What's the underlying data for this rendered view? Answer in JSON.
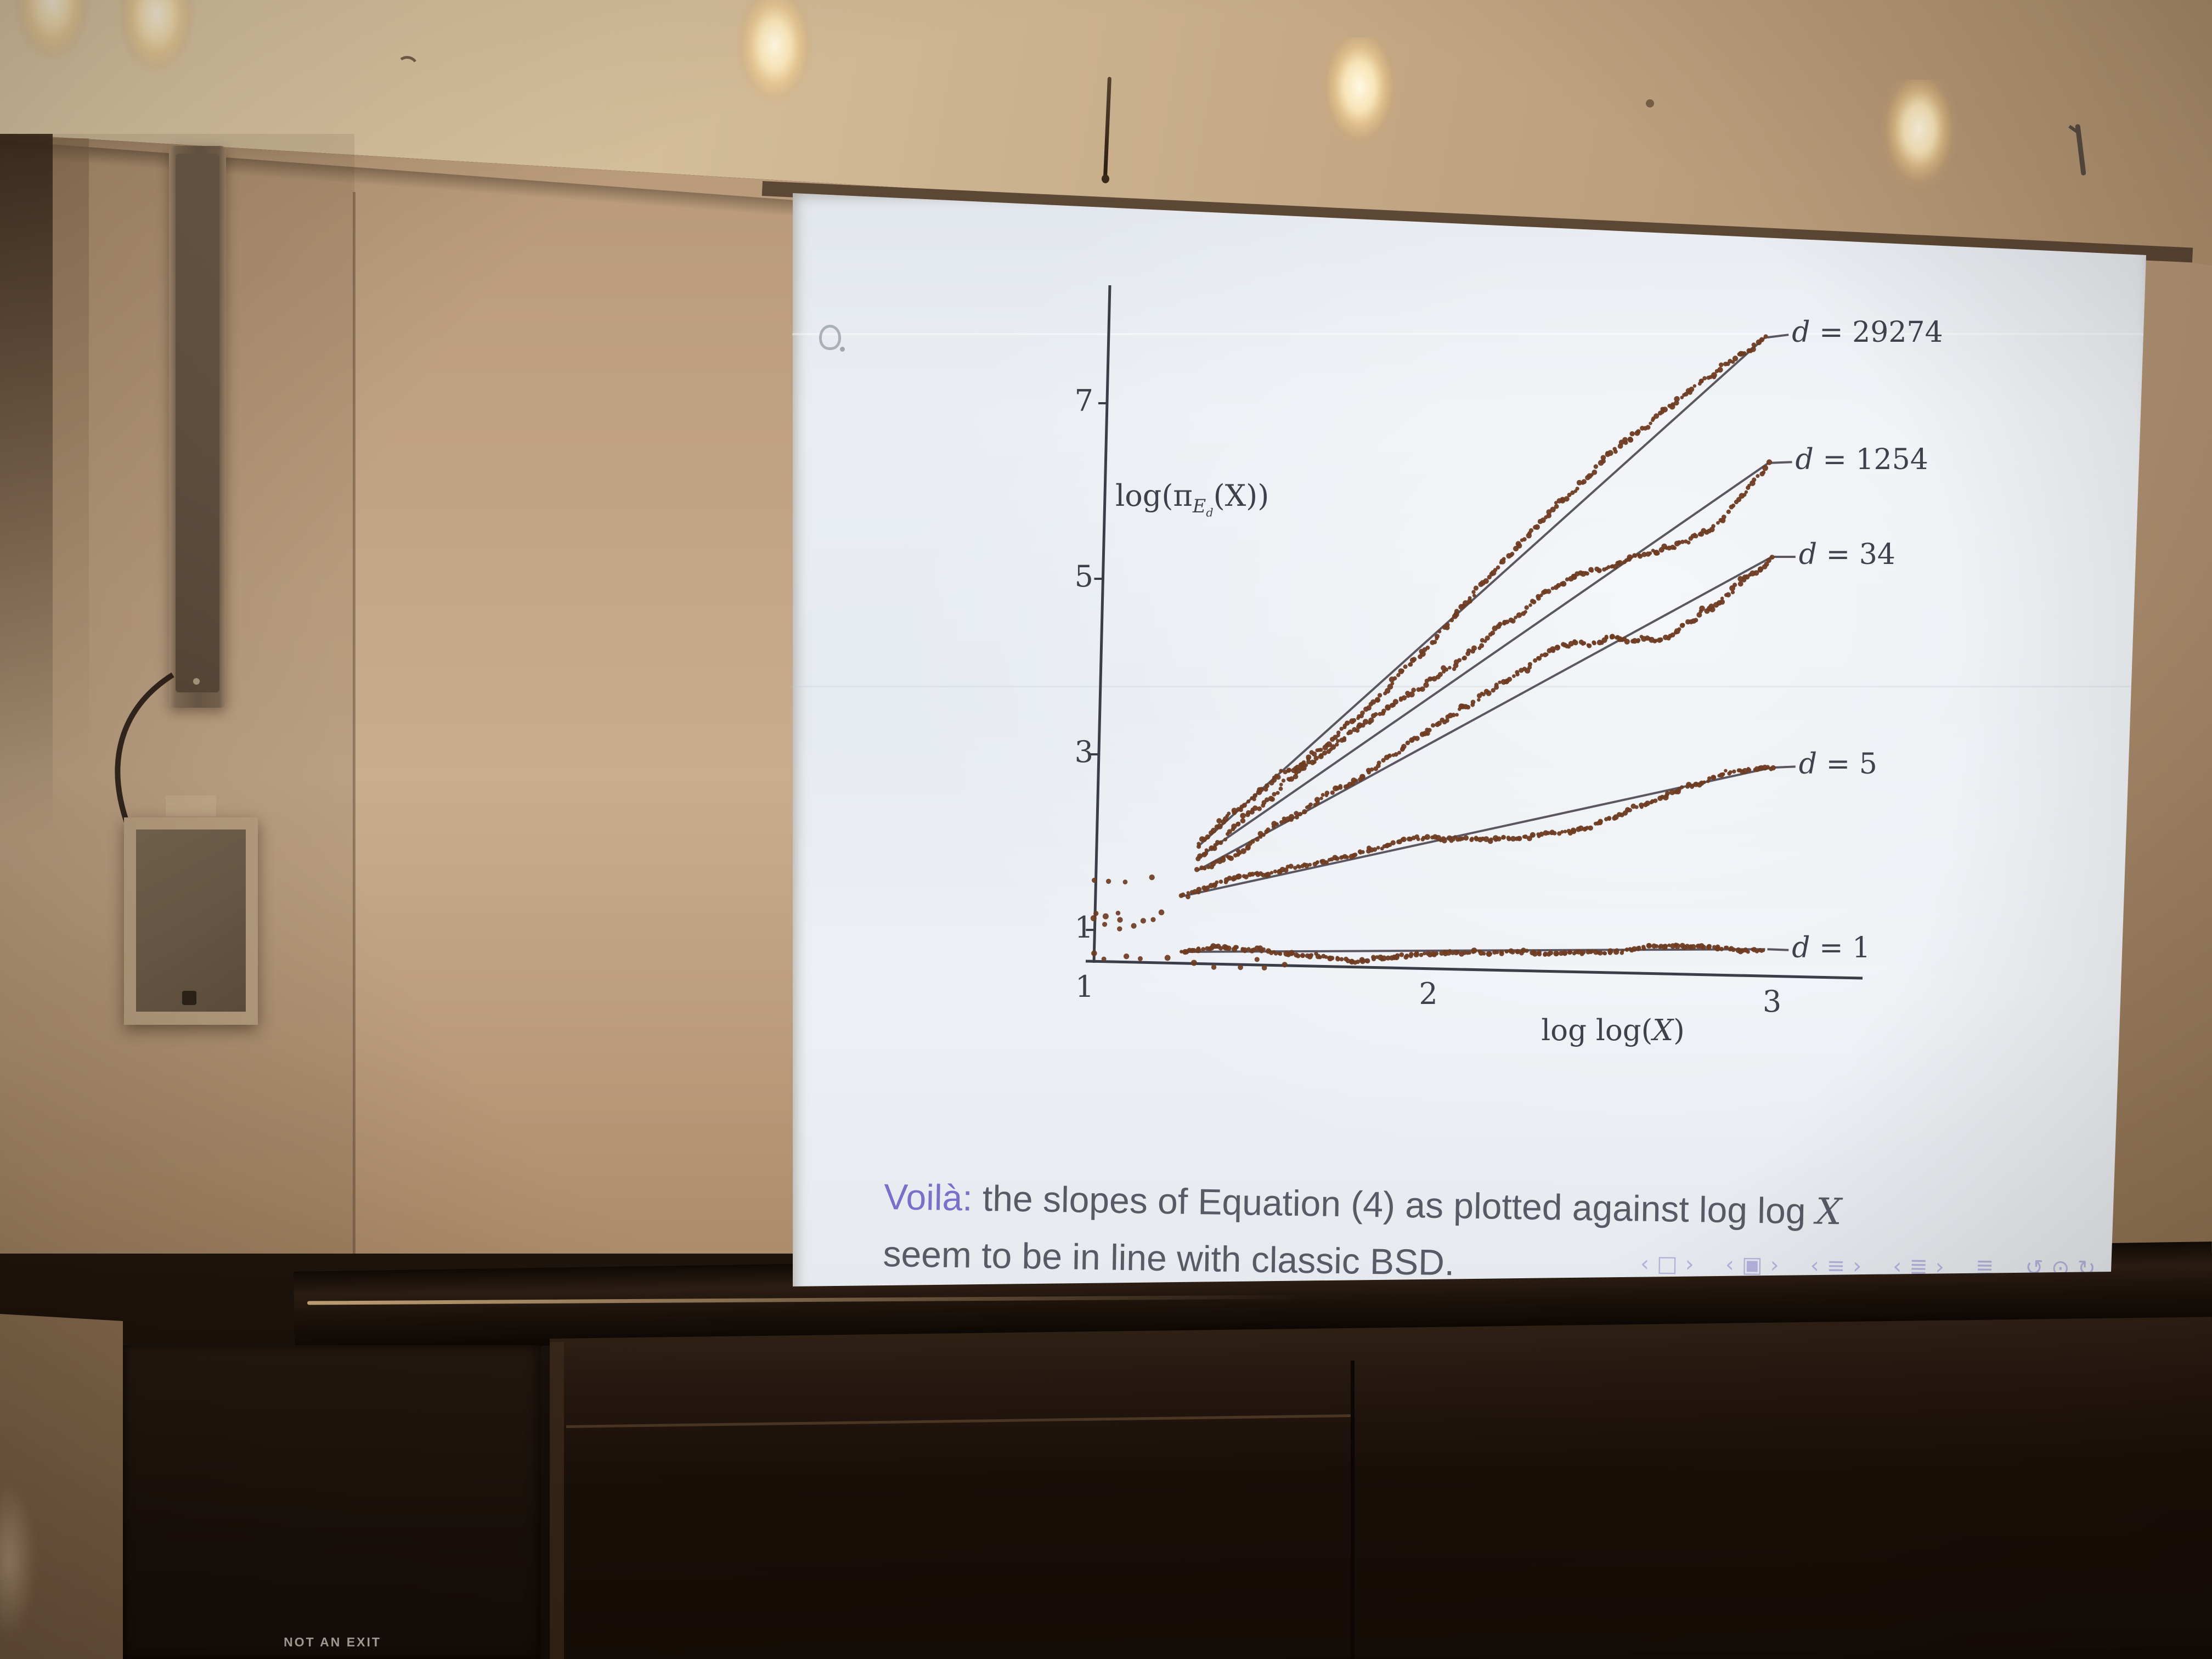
{
  "scene": {
    "sign": {
      "text": "NOT AN EXIT"
    }
  },
  "slide": {
    "stamp_icon": "hand-stamp",
    "caption": {
      "lead": "Voilà:",
      "line1_rest": " the slopes of Equation (4) as plotted against ",
      "line1_math": "log log ",
      "line1_var": "X",
      "line2": "seem to be in line with classic BSD.",
      "lead_color": "#7a70c9",
      "body_color": "#565b66"
    },
    "nav_groups": [
      [
        {
          "name": "nav-back-icon",
          "glyph": "‹"
        },
        {
          "name": "nav-slide-icon",
          "glyph": "□"
        },
        {
          "name": "nav-forward-icon",
          "glyph": "›"
        }
      ],
      [
        {
          "name": "nav-back-icon",
          "glyph": "‹"
        },
        {
          "name": "nav-frame-icon",
          "glyph": "▣"
        },
        {
          "name": "nav-forward-icon",
          "glyph": "›"
        }
      ],
      [
        {
          "name": "nav-back-icon",
          "glyph": "‹"
        },
        {
          "name": "nav-subsection-icon",
          "glyph": "≡"
        },
        {
          "name": "nav-forward-icon",
          "glyph": "›"
        }
      ],
      [
        {
          "name": "nav-back-icon",
          "glyph": "‹"
        },
        {
          "name": "nav-section-icon",
          "glyph": "≣"
        },
        {
          "name": "nav-forward-icon",
          "glyph": "›"
        }
      ],
      [
        {
          "name": "nav-appendix-icon",
          "glyph": "≣"
        }
      ],
      [
        {
          "name": "nav-return-icon",
          "glyph": "↺"
        },
        {
          "name": "nav-search-icon",
          "glyph": "⊙"
        },
        {
          "name": "nav-redo-icon",
          "glyph": "↻"
        }
      ]
    ]
  },
  "chart_data": {
    "type": "scatter",
    "title": "",
    "xlabel_parts": {
      "pre": "log log(",
      "var": "X",
      "post": ")"
    },
    "ylabel_parts": {
      "pre": "log(π",
      "sub": "E",
      "subsub": "d",
      "post": "(X))"
    },
    "x_ticks": [
      "1",
      "2",
      "3"
    ],
    "y_ticks": [
      "7",
      "5",
      "3",
      "1"
    ],
    "xlim": [
      1,
      3.3
    ],
    "ylim": [
      0.4,
      8.4
    ],
    "grid": false,
    "legend": "inline-right-labels",
    "dot_color": "#6e3c22",
    "fit_line_color": "#4b4650",
    "axis_color": "#3a3e48",
    "series": [
      {
        "label": "d = 29274",
        "d": 29274,
        "fit_line": {
          "x1": 1.33,
          "y1": 1.95,
          "x2": 2.98,
          "y2": 7.75
        },
        "label_anchor": {
          "x": 3.01,
          "y": 7.78
        },
        "scatter": {
          "n": 230,
          "seed": 11,
          "walk_amp": 0.16,
          "wobble": [
            {
              "a": 0.07,
              "f": 9.5,
              "p": 1.2
            },
            {
              "a": 0.12,
              "f": 4.2,
              "p": 4.0
            }
          ]
        }
      },
      {
        "label": "d = 1254",
        "d": 1254,
        "fit_line": {
          "x1": 1.33,
          "y1": 1.82,
          "x2": 2.99,
          "y2": 6.32
        },
        "label_anchor": {
          "x": 3.02,
          "y": 6.33
        },
        "scatter": {
          "n": 225,
          "seed": 22,
          "walk_amp": 0.15,
          "wobble": [
            {
              "a": 0.2,
              "f": 5.5,
              "p": -0.5
            },
            {
              "a": 0.1,
              "f": 11.0,
              "p": 0.5
            }
          ]
        }
      },
      {
        "label": "d = 34",
        "d": 34,
        "fit_line": {
          "x1": 1.33,
          "y1": 1.68,
          "x2": 3.0,
          "y2": 5.25
        },
        "label_anchor": {
          "x": 3.03,
          "y": 5.25
        },
        "scatter": {
          "n": 225,
          "seed": 33,
          "walk_amp": 0.15,
          "wobble": [
            {
              "a": 0.18,
              "f": 6.0,
              "p": -1.2
            },
            {
              "a": 0.09,
              "f": 12.0,
              "p": 1.0
            }
          ]
        }
      },
      {
        "label": "d = 5",
        "d": 5,
        "fit_line": {
          "x1": 1.28,
          "y1": 1.38,
          "x2": 3.0,
          "y2": 2.85
        },
        "label_anchor": {
          "x": 3.03,
          "y": 2.86
        },
        "scatter": {
          "n": 220,
          "seed": 44,
          "walk_amp": 0.11,
          "wobble": [
            {
              "a": 0.08,
              "f": 7.0,
              "p": 0.3
            },
            {
              "a": 0.05,
              "f": 13.0,
              "p": 2.0
            }
          ]
        }
      },
      {
        "label": "d = 1",
        "d": 1,
        "fit_line": {
          "x1": 1.28,
          "y1": 0.75,
          "x2": 2.98,
          "y2": 0.78
        },
        "label_anchor": {
          "x": 3.01,
          "y": 0.77
        },
        "scatter": {
          "n": 215,
          "seed": 55,
          "walk_amp": 0.07,
          "wobble": [
            {
              "a": 0.04,
              "f": 8.0,
              "p": 1.5
            },
            {
              "a": 0.03,
              "f": 15.0,
              "p": 0.8
            }
          ]
        }
      }
    ],
    "loose_points": [
      [
        1.03,
        1.55
      ],
      [
        1.07,
        1.56
      ],
      [
        1.12,
        1.55
      ],
      [
        1.03,
        1.18
      ],
      [
        1.03,
        1.12
      ],
      [
        1.06,
        1.15
      ],
      [
        1.06,
        1.08
      ],
      [
        1.1,
        1.18
      ],
      [
        1.1,
        1.1
      ],
      [
        1.1,
        1.03
      ],
      [
        1.03,
        0.72
      ],
      [
        1.06,
        0.68
      ],
      [
        1.12,
        0.7
      ],
      [
        1.16,
        0.67
      ],
      [
        1.2,
        1.6
      ],
      [
        1.22,
        1.2
      ],
      [
        1.2,
        1.12
      ],
      [
        1.17,
        1.12
      ],
      [
        1.14,
        1.05
      ],
      [
        1.24,
        0.7
      ],
      [
        1.45,
        0.58
      ],
      [
        1.52,
        0.55
      ],
      [
        1.58,
        0.6
      ],
      [
        1.5,
        0.65
      ],
      [
        1.38,
        0.56
      ],
      [
        1.32,
        0.62
      ]
    ]
  }
}
